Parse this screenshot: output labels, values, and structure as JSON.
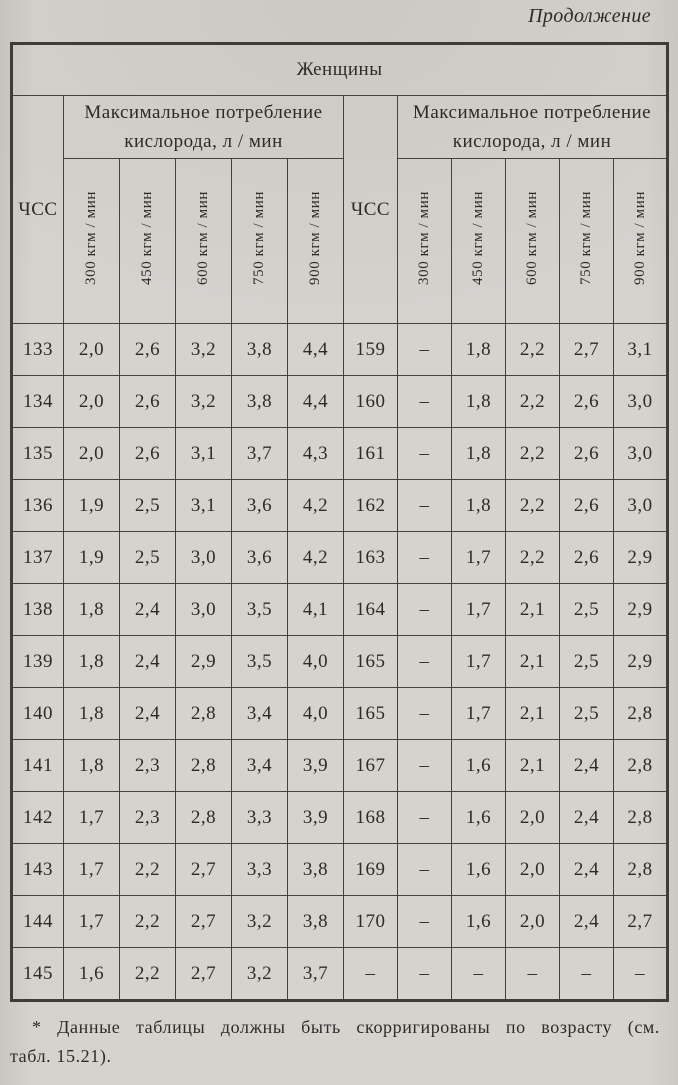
{
  "page": {
    "continuation_label": "Продолжение"
  },
  "table": {
    "title": "Женщины",
    "hr_header_left": "ЧСС",
    "hr_header_right": "ЧСС",
    "consumption_header_left": "Максимальное потребление кислорода, л / мин",
    "consumption_header_right": "Максимальное потребление кислорода, л / мин",
    "load_headers": [
      "300 кгм / мин",
      "450 кгм / мин",
      "600 кгм / мин",
      "750 кгм / мин",
      "900 кгм / мин"
    ],
    "rows": [
      [
        "133",
        "2,0",
        "2,6",
        "3,2",
        "3,8",
        "4,4",
        "159",
        "–",
        "1,8",
        "2,2",
        "2,7",
        "3,1"
      ],
      [
        "134",
        "2,0",
        "2,6",
        "3,2",
        "3,8",
        "4,4",
        "160",
        "–",
        "1,8",
        "2,2",
        "2,6",
        "3,0"
      ],
      [
        "135",
        "2,0",
        "2,6",
        "3,1",
        "3,7",
        "4,3",
        "161",
        "–",
        "1,8",
        "2,2",
        "2,6",
        "3,0"
      ],
      [
        "136",
        "1,9",
        "2,5",
        "3,1",
        "3,6",
        "4,2",
        "162",
        "–",
        "1,8",
        "2,2",
        "2,6",
        "3,0"
      ],
      [
        "137",
        "1,9",
        "2,5",
        "3,0",
        "3,6",
        "4,2",
        "163",
        "–",
        "1,7",
        "2,2",
        "2,6",
        "2,9"
      ],
      [
        "138",
        "1,8",
        "2,4",
        "3,0",
        "3,5",
        "4,1",
        "164",
        "–",
        "1,7",
        "2,1",
        "2,5",
        "2,9"
      ],
      [
        "139",
        "1,8",
        "2,4",
        "2,9",
        "3,5",
        "4,0",
        "165",
        "–",
        "1,7",
        "2,1",
        "2,5",
        "2,9"
      ],
      [
        "140",
        "1,8",
        "2,4",
        "2,8",
        "3,4",
        "4,0",
        "165",
        "–",
        "1,7",
        "2,1",
        "2,5",
        "2,8"
      ],
      [
        "141",
        "1,8",
        "2,3",
        "2,8",
        "3,4",
        "3,9",
        "167",
        "–",
        "1,6",
        "2,1",
        "2,4",
        "2,8"
      ],
      [
        "142",
        "1,7",
        "2,3",
        "2,8",
        "3,3",
        "3,9",
        "168",
        "–",
        "1,6",
        "2,0",
        "2,4",
        "2,8"
      ],
      [
        "143",
        "1,7",
        "2,2",
        "2,7",
        "3,3",
        "3,8",
        "169",
        "–",
        "1,6",
        "2,0",
        "2,4",
        "2,8"
      ],
      [
        "144",
        "1,7",
        "2,2",
        "2,7",
        "3,2",
        "3,8",
        "170",
        "–",
        "1,6",
        "2,0",
        "2,4",
        "2,7"
      ],
      [
        "145",
        "1,6",
        "2,2",
        "2,7",
        "3,2",
        "3,7",
        "–",
        "–",
        "–",
        "–",
        "–",
        "–"
      ]
    ]
  },
  "footnote": {
    "line1": "* Данные таблицы должны быть скорригированы по возрасту (см.",
    "line2": "табл. 15.21)."
  },
  "colors": {
    "paper": "#d6d3cf",
    "ink": "#2d2a27",
    "border": "#45423d"
  }
}
